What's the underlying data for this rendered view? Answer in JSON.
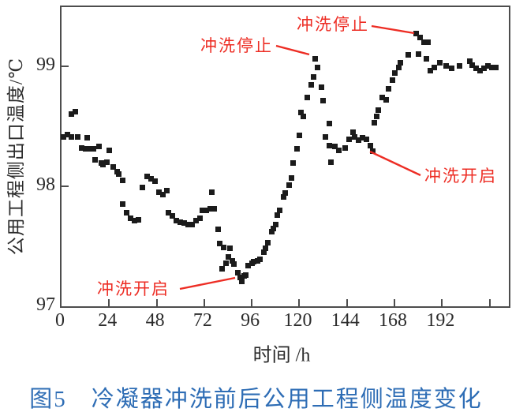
{
  "figure": {
    "caption": "图5　冷凝器冲洗前后公用工程侧温度变化",
    "caption_color": "#2e6db5"
  },
  "chart_data": {
    "type": "scatter",
    "title": "",
    "xlabel": "时间 /h",
    "ylabel": "公用工程侧出口温度/℃",
    "xlim": [
      0,
      225.7
    ],
    "ylim": [
      97,
      99.49
    ],
    "x_ticks": [
      0,
      24,
      48,
      72,
      96,
      120,
      144,
      168,
      192
    ],
    "x_unlabeled_ticks": [
      216
    ],
    "y_ticks": [
      97,
      98,
      99
    ],
    "grid": false,
    "legend": "none",
    "marker": "square",
    "marker_color": "#1b1b1b",
    "annotation_color": "#ed2d24",
    "axis_color": "#4d4d4d",
    "annotations": [
      {
        "text": "冲洗停止",
        "target_x": 128,
        "target_y": 99.06
      },
      {
        "text": "冲洗停止",
        "target_x": 180,
        "target_y": 99.25
      },
      {
        "text": "冲洗开启",
        "target_x": 90,
        "target_y": 97.23
      },
      {
        "text": "冲洗开启",
        "target_x": 157,
        "target_y": 98.29
      }
    ],
    "points": [
      [
        1,
        98.41
      ],
      [
        3,
        98.43
      ],
      [
        5,
        98.41
      ],
      [
        5,
        98.6
      ],
      [
        7,
        98.62
      ],
      [
        8,
        98.41
      ],
      [
        10,
        98.32
      ],
      [
        12,
        98.31
      ],
      [
        13,
        98.4
      ],
      [
        14,
        98.31
      ],
      [
        16,
        98.31
      ],
      [
        17,
        98.22
      ],
      [
        19,
        98.33
      ],
      [
        20,
        98.19
      ],
      [
        21,
        98.18
      ],
      [
        23,
        98.2
      ],
      [
        24,
        98.3
      ],
      [
        26,
        98.16
      ],
      [
        28,
        98.12
      ],
      [
        29,
        98.1
      ],
      [
        31,
        98.05
      ],
      [
        31,
        97.85
      ],
      [
        33,
        97.78
      ],
      [
        35,
        97.73
      ],
      [
        37,
        97.71
      ],
      [
        39,
        97.72
      ],
      [
        41,
        97.99
      ],
      [
        43,
        98.08
      ],
      [
        45,
        98.06
      ],
      [
        47,
        98.04
      ],
      [
        49,
        97.95
      ],
      [
        51,
        97.93
      ],
      [
        53,
        97.96
      ],
      [
        54,
        97.78
      ],
      [
        56,
        97.75
      ],
      [
        58,
        97.71
      ],
      [
        60,
        97.7
      ],
      [
        62,
        97.69
      ],
      [
        64,
        97.68
      ],
      [
        66,
        97.68
      ],
      [
        68,
        97.71
      ],
      [
        70,
        97.73
      ],
      [
        71,
        97.8
      ],
      [
        73,
        97.8
      ],
      [
        75,
        97.81
      ],
      [
        76,
        97.95
      ],
      [
        77,
        97.81
      ],
      [
        79,
        97.64
      ],
      [
        80,
        97.52
      ],
      [
        81,
        97.31
      ],
      [
        82,
        97.49
      ],
      [
        83,
        97.36
      ],
      [
        84,
        97.41
      ],
      [
        85,
        97.48
      ],
      [
        86,
        97.38
      ],
      [
        87,
        97.35
      ],
      [
        89,
        97.28
      ],
      [
        90,
        97.24
      ],
      [
        91,
        97.21
      ],
      [
        92,
        97.25
      ],
      [
        93,
        97.26
      ],
      [
        94,
        97.34
      ],
      [
        96,
        97.36
      ],
      [
        97,
        97.37
      ],
      [
        99,
        97.38
      ],
      [
        100,
        97.39
      ],
      [
        102,
        97.45
      ],
      [
        103,
        97.48
      ],
      [
        104,
        97.53
      ],
      [
        106,
        97.62
      ],
      [
        107,
        97.65
      ],
      [
        108,
        97.68
      ],
      [
        109,
        97.76
      ],
      [
        110,
        97.8
      ],
      [
        112,
        97.91
      ],
      [
        113,
        97.94
      ],
      [
        115,
        98.01
      ],
      [
        116,
        98.07
      ],
      [
        117,
        98.19
      ],
      [
        119,
        98.31
      ],
      [
        120,
        98.42
      ],
      [
        121,
        98.61
      ],
      [
        122,
        98.58
      ],
      [
        124,
        98.74
      ],
      [
        126,
        98.84
      ],
      [
        127,
        98.91
      ],
      [
        128,
        99.06
      ],
      [
        129,
        98.99
      ],
      [
        131,
        98.82
      ],
      [
        132,
        98.71
      ],
      [
        133,
        98.41
      ],
      [
        135,
        98.52
      ],
      [
        135,
        98.34
      ],
      [
        136,
        98.2
      ],
      [
        138,
        98.33
      ],
      [
        140,
        98.3
      ],
      [
        143,
        98.32
      ],
      [
        145,
        98.39
      ],
      [
        147,
        98.45
      ],
      [
        148,
        98.41
      ],
      [
        150,
        98.38
      ],
      [
        152,
        98.4
      ],
      [
        154,
        98.39
      ],
      [
        156,
        98.34
      ],
      [
        157,
        98.29
      ],
      [
        158,
        98.53
      ],
      [
        159,
        98.58
      ],
      [
        160,
        98.63
      ],
      [
        162,
        98.74
      ],
      [
        164,
        98.72
      ],
      [
        165,
        98.81
      ],
      [
        167,
        98.88
      ],
      [
        168,
        98.94
      ],
      [
        170,
        98.99
      ],
      [
        171,
        99.03
      ],
      [
        175,
        99.09
      ],
      [
        179,
        99.27
      ],
      [
        180,
        99.1
      ],
      [
        181,
        99.24
      ],
      [
        183,
        99.2
      ],
      [
        184,
        99.06
      ],
      [
        185,
        99.2
      ],
      [
        186,
        98.96
      ],
      [
        188,
        98.99
      ],
      [
        191,
        99.03
      ],
      [
        194,
        99.0
      ],
      [
        197,
        98.98
      ],
      [
        201,
        99.0
      ],
      [
        206,
        99.04
      ],
      [
        207,
        99.01
      ],
      [
        209,
        98.98
      ],
      [
        211,
        98.96
      ],
      [
        213,
        98.98
      ],
      [
        215,
        99.0
      ],
      [
        217,
        98.99
      ],
      [
        219,
        98.99
      ]
    ]
  }
}
